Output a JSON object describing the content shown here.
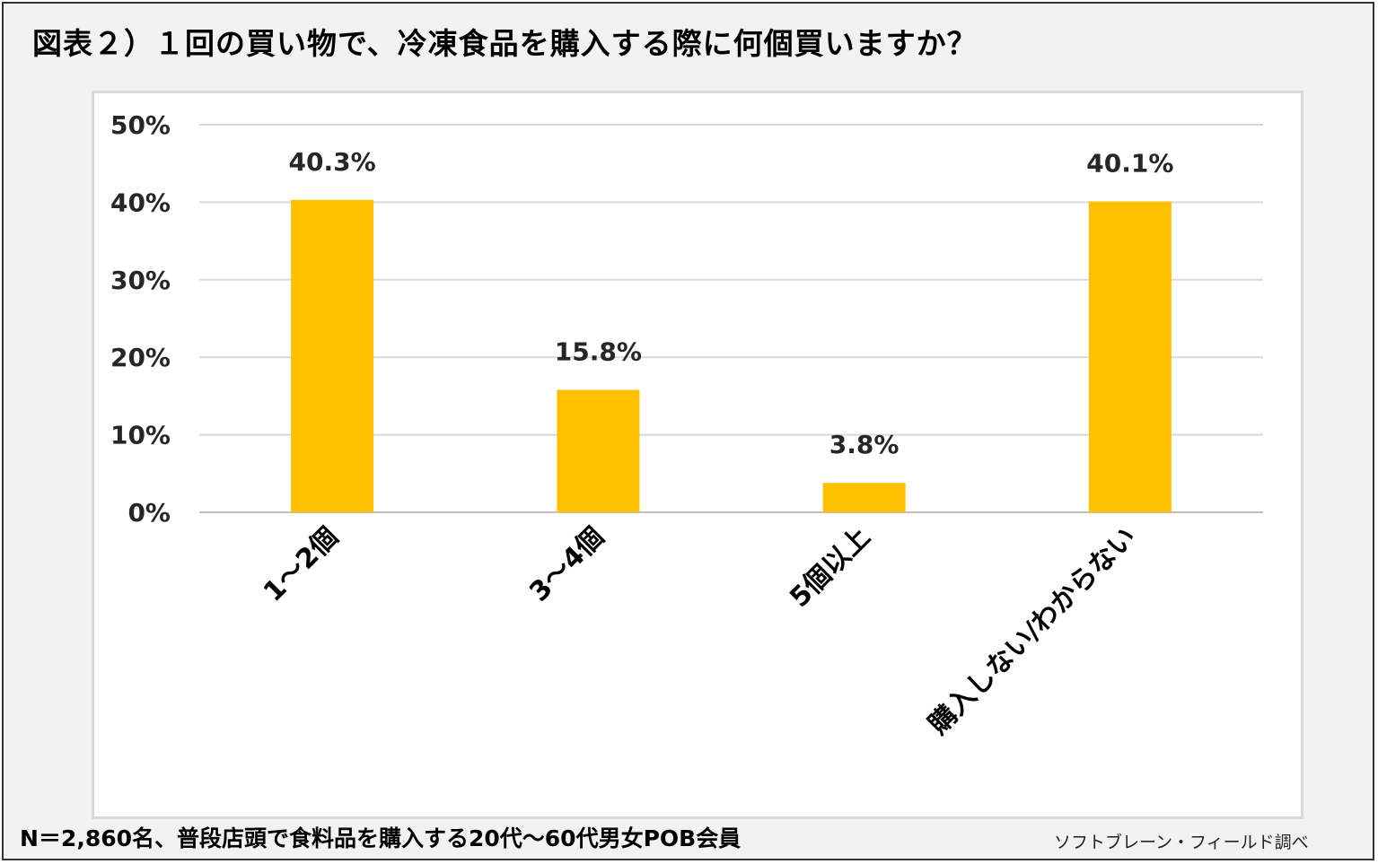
{
  "title": "図表２）１回の買い物で、冷凍食品を購入する際に何個買いますか？",
  "footer": {
    "note": "N＝2,860名、普段店頭で食料品を購入する20代〜60代男女POB会員",
    "source": "ソフトブレーン・フィールド調べ"
  },
  "colors": {
    "bar": "#FFC000",
    "grid": "#d9d9d9"
  },
  "chart_data": {
    "type": "bar",
    "categories": [
      "1〜2個",
      "3〜4個",
      "5個以上",
      "購入しない/わからない"
    ],
    "values": [
      40.3,
      15.8,
      3.8,
      40.1
    ],
    "data_labels": [
      "40.3%",
      "15.8%",
      "3.8%",
      "40.1%"
    ],
    "yticks": [
      "0%",
      "10%",
      "20%",
      "30%",
      "40%",
      "50%"
    ],
    "ylim": [
      0,
      50
    ],
    "grid": true,
    "legend": "none"
  }
}
